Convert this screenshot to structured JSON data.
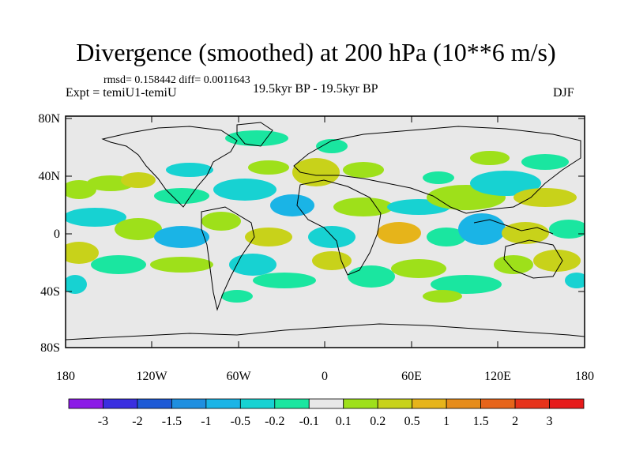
{
  "title": "Divergence (smoothed) at 200 hPa (10**6 m/s)",
  "stats": "rmsd= 0.158442 diff= 0.0011643",
  "experiment": "Expt = temiU1-temiU",
  "period": "19.5kyr BP - 19.5kyr BP",
  "season": "DJF",
  "lat_ticks": [
    "80N",
    "40N",
    "0",
    "40S",
    "80S"
  ],
  "lon_ticks": [
    "180",
    "120W",
    "60W",
    "0",
    "60E",
    "120E",
    "180"
  ],
  "colorbar": {
    "labels": [
      "-3",
      "-2",
      "-1.5",
      "-1",
      "-0.5",
      "-0.2",
      "-0.1",
      "0.1",
      "0.2",
      "0.5",
      "1",
      "1.5",
      "2",
      "3"
    ],
    "colors": [
      "#8b1ae6",
      "#3a2ee0",
      "#1e5ad6",
      "#1f8fe0",
      "#1ab4e6",
      "#17d2d2",
      "#1ae6a0",
      "#e8e8e8",
      "#9ee01a",
      "#c8d21a",
      "#e6b41a",
      "#e68c1a",
      "#e6641a",
      "#e6321a",
      "#e61a1a"
    ]
  },
  "field_colors": {
    "background": "#e8e8e8",
    "neg_weak": "#1ae6a0",
    "neg_mid": "#17d2d2",
    "neg_strong": "#1ab4e6",
    "pos_weak": "#9ee01a",
    "pos_mid": "#c8d21a",
    "pos_strong": "#e6b41a"
  }
}
